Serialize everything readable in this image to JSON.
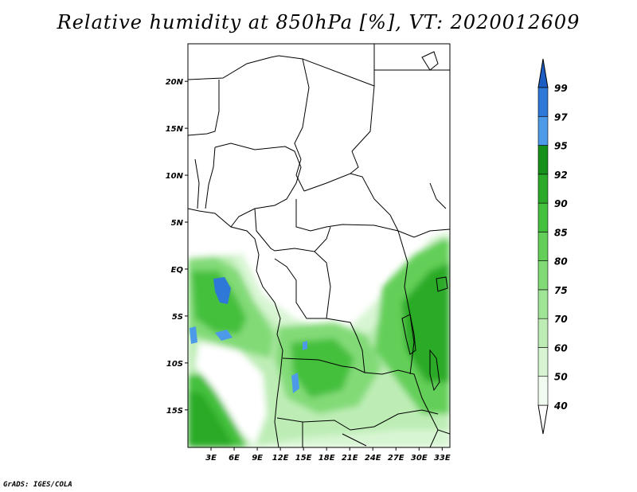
{
  "title": "Relative humidity at 850hPa [%], VT: 2020012609",
  "credit": "GrADS: IGES/COLA",
  "map": {
    "lon_range": [
      0,
      34
    ],
    "lat_range": [
      -19,
      24
    ],
    "lat_ticks": [
      {
        "value": 20,
        "label": "20N"
      },
      {
        "value": 15,
        "label": "15N"
      },
      {
        "value": 10,
        "label": "10N"
      },
      {
        "value": 5,
        "label": "5N"
      },
      {
        "value": 0,
        "label": "EQ"
      },
      {
        "value": -5,
        "label": "5S"
      },
      {
        "value": -10,
        "label": "10S"
      },
      {
        "value": -15,
        "label": "15S"
      }
    ],
    "lon_ticks": [
      {
        "value": 3,
        "label": "3E"
      },
      {
        "value": 6,
        "label": "6E"
      },
      {
        "value": 9,
        "label": "9E"
      },
      {
        "value": 12,
        "label": "12E"
      },
      {
        "value": 15,
        "label": "15E"
      },
      {
        "value": 18,
        "label": "18E"
      },
      {
        "value": 21,
        "label": "21E"
      },
      {
        "value": 24,
        "label": "24E"
      },
      {
        "value": 27,
        "label": "27E"
      },
      {
        "value": 30,
        "label": "30E"
      },
      {
        "value": 33,
        "label": "33E"
      }
    ]
  },
  "colorbar": {
    "levels": [
      {
        "label": "40",
        "color": "#f0fcef"
      },
      {
        "label": "50",
        "color": "#d8f5d3"
      },
      {
        "label": "60",
        "color": "#bdedb5"
      },
      {
        "label": "70",
        "color": "#a0e496"
      },
      {
        "label": "75",
        "color": "#82da77"
      },
      {
        "label": "80",
        "color": "#63cf58"
      },
      {
        "label": "85",
        "color": "#45c03c"
      },
      {
        "label": "90",
        "color": "#2aaa28"
      },
      {
        "label": "92",
        "color": "#16901a"
      },
      {
        "label": "95",
        "color": "#4d9ae8"
      },
      {
        "label": "97",
        "color": "#2e78d8"
      },
      {
        "label": "99",
        "color": "#1c5ec4"
      }
    ],
    "over_color": "#1c5ec4"
  }
}
